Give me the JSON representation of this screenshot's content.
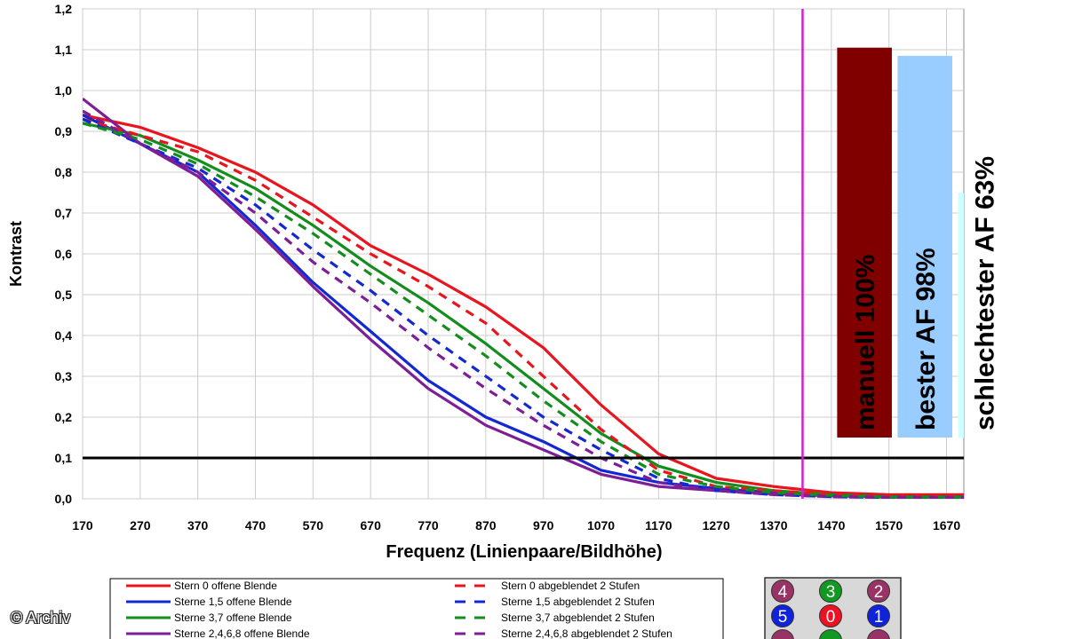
{
  "chart_data": {
    "type": "line",
    "xlabel": "Frequenz (Linienpaare/Bildhöhe)",
    "ylabel": "Kontrast",
    "xlim": [
      170,
      1700
    ],
    "ylim": [
      0,
      1.2
    ],
    "x_ticks": [
      "170",
      "270",
      "370",
      "470",
      "570",
      "670",
      "770",
      "870",
      "970",
      "1070",
      "1170",
      "1270",
      "1370",
      "1470",
      "1570",
      "1670"
    ],
    "y_ticks": [
      "0,0",
      "0,1",
      "0,2",
      "0,3",
      "0,4",
      "0,5",
      "0,6",
      "0,7",
      "0,8",
      "0,9",
      "1,0",
      "1,1",
      "1,2"
    ],
    "grid": true,
    "threshold_line": {
      "y": 0.1,
      "color": "#000000"
    },
    "marker_line": {
      "x": 1420,
      "color": "#d21fd2"
    },
    "x": [
      170,
      270,
      370,
      470,
      570,
      670,
      770,
      870,
      970,
      1070,
      1170,
      1270,
      1370,
      1470,
      1570,
      1670,
      1700
    ],
    "series": [
      {
        "name": "Stern 0 offene Blende",
        "color": "#e8141e",
        "dash": false,
        "values": [
          0.94,
          0.91,
          0.86,
          0.8,
          0.72,
          0.62,
          0.55,
          0.47,
          0.37,
          0.23,
          0.11,
          0.05,
          0.03,
          0.015,
          0.01,
          0.01,
          0.01
        ]
      },
      {
        "name": "Sterne 1,5 offene Blende",
        "color": "#1428d2",
        "dash": false,
        "values": [
          0.94,
          0.87,
          0.8,
          0.67,
          0.53,
          0.41,
          0.29,
          0.2,
          0.14,
          0.07,
          0.04,
          0.025,
          0.015,
          0.01,
          0.005,
          0.005,
          0.005
        ]
      },
      {
        "name": "Sterne 3,7 offene Blende",
        "color": "#148c1e",
        "dash": false,
        "values": [
          0.92,
          0.89,
          0.83,
          0.76,
          0.67,
          0.57,
          0.48,
          0.38,
          0.27,
          0.16,
          0.08,
          0.04,
          0.02,
          0.01,
          0.005,
          0.005,
          0.005
        ]
      },
      {
        "name": "Sterne 2,4,6,8 offene Blende",
        "color": "#7d1e96",
        "dash": false,
        "values": [
          0.98,
          0.87,
          0.79,
          0.66,
          0.52,
          0.39,
          0.27,
          0.18,
          0.12,
          0.06,
          0.03,
          0.02,
          0.012,
          0.007,
          0.004,
          0.004,
          0.004
        ]
      },
      {
        "name": "Stern 0 abgeblendet 2 Stufen",
        "color": "#e8141e",
        "dash": true,
        "values": [
          0.93,
          0.89,
          0.85,
          0.78,
          0.69,
          0.6,
          0.52,
          0.43,
          0.3,
          0.17,
          0.07,
          0.03,
          0.02,
          0.01,
          0.005,
          0.005,
          0.005
        ]
      },
      {
        "name": "Sterne 1,5 abgeblendet 2 Stufen",
        "color": "#1428d2",
        "dash": true,
        "values": [
          0.93,
          0.87,
          0.81,
          0.72,
          0.61,
          0.51,
          0.4,
          0.3,
          0.2,
          0.12,
          0.05,
          0.02,
          0.01,
          0.005,
          0.003,
          0.003,
          0.003
        ]
      },
      {
        "name": "Sterne 3,7 abgeblendet 2 Stufen",
        "color": "#148c1e",
        "dash": true,
        "values": [
          0.92,
          0.88,
          0.82,
          0.74,
          0.65,
          0.55,
          0.45,
          0.35,
          0.24,
          0.14,
          0.06,
          0.03,
          0.015,
          0.008,
          0.004,
          0.004,
          0.004
        ]
      },
      {
        "name": "Sterne 2,4,6,8 abgeblendet 2 Stufen",
        "color": "#7d1e96",
        "dash": true,
        "values": [
          0.95,
          0.87,
          0.8,
          0.7,
          0.58,
          0.48,
          0.37,
          0.27,
          0.18,
          0.1,
          0.04,
          0.02,
          0.01,
          0.005,
          0.003,
          0.003,
          0.003
        ]
      }
    ],
    "bars": [
      {
        "label": "manuell 100%",
        "color": "#800000",
        "x_start": 1480,
        "x_end": 1575,
        "value": 1.105
      },
      {
        "label": "bester AF 98%",
        "color": "#99ccff",
        "x_start": 1585,
        "x_end": 1680,
        "value": 1.085
      },
      {
        "label": "schlechtester AF 63%",
        "color": "#ccffff",
        "x_start": 1690,
        "x_end": 1780,
        "value": 0.75
      }
    ],
    "star_grid": [
      {
        "number": "4",
        "color": "#993366"
      },
      {
        "number": "3",
        "color": "#119922"
      },
      {
        "number": "2",
        "color": "#993366"
      },
      {
        "number": "5",
        "color": "#1122dd"
      },
      {
        "number": "0",
        "color": "#ee1122"
      },
      {
        "number": "1",
        "color": "#1122dd"
      },
      {
        "number": "",
        "color": "#993366"
      },
      {
        "number": "",
        "color": "#119922"
      },
      {
        "number": "",
        "color": "#993366"
      }
    ]
  },
  "credit": "© Archiv"
}
